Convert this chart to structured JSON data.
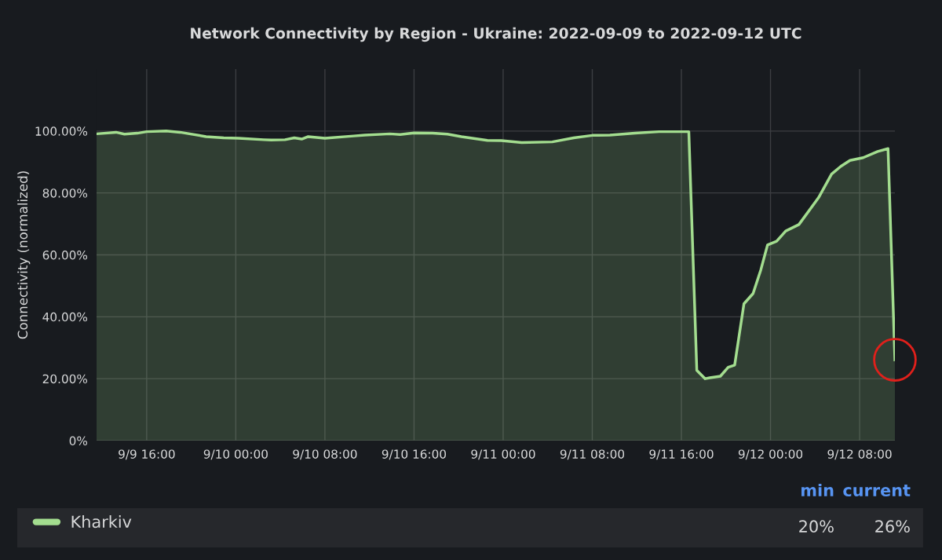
{
  "chart_data": {
    "type": "area",
    "title": "Network Connectivity by Region - Ukraine: 2022-09-09 to 2022-09-12 UTC",
    "ylabel": "Connectivity (normalized)",
    "x": [
      "2022-09-09T11:30",
      "2022-09-09T13:15",
      "2022-09-09T14:00",
      "2022-09-09T15:10",
      "2022-09-09T16:00",
      "2022-09-09T17:45",
      "2022-09-09T19:00",
      "2022-09-09T21:20",
      "2022-09-09T22:55",
      "2022-09-10T00:15",
      "2022-09-10T02:30",
      "2022-09-10T03:10",
      "2022-09-10T04:25",
      "2022-09-10T05:15",
      "2022-09-10T05:55",
      "2022-09-10T06:30",
      "2022-09-10T08:00",
      "2022-09-10T10:35",
      "2022-09-10T11:35",
      "2022-09-10T13:50",
      "2022-09-10T14:45",
      "2022-09-10T16:00",
      "2022-09-10T17:40",
      "2022-09-10T19:00",
      "2022-09-10T20:15",
      "2022-09-10T22:35",
      "2022-09-10T23:50",
      "2022-09-11T01:40",
      "2022-09-11T04:25",
      "2022-09-11T06:20",
      "2022-09-11T08:00",
      "2022-09-11T09:35",
      "2022-09-11T11:50",
      "2022-09-11T14:00",
      "2022-09-11T16:40",
      "2022-09-11T17:23",
      "2022-09-11T18:08",
      "2022-09-11T18:33",
      "2022-09-11T19:30",
      "2022-09-11T20:12",
      "2022-09-11T20:47",
      "2022-09-11T21:37",
      "2022-09-11T22:26",
      "2022-09-11T23:08",
      "2022-09-11T23:44",
      "2022-09-12T00:33",
      "2022-09-12T01:22",
      "2022-09-12T02:33",
      "2022-09-12T04:19",
      "2022-09-12T05:29",
      "2022-09-12T06:19",
      "2022-09-12T07:08",
      "2022-09-12T08:19",
      "2022-09-12T09:37",
      "2022-09-12T10:33",
      "2022-09-12T11:10"
    ],
    "series": [
      {
        "name": "Kharkiv",
        "color": "#a3dd8f",
        "values": [
          99.1,
          99.6,
          99.0,
          99.3,
          99.8,
          100.0,
          99.6,
          98.2,
          97.8,
          97.7,
          97.2,
          97.1,
          97.2,
          97.8,
          97.4,
          98.2,
          97.7,
          98.4,
          98.7,
          99.1,
          98.9,
          99.4,
          99.3,
          99.0,
          98.2,
          97.0,
          96.9,
          96.3,
          96.5,
          97.8,
          98.6,
          98.7,
          99.3,
          99.8,
          99.8,
          22.7,
          20.0,
          20.3,
          20.8,
          23.7,
          24.4,
          44.2,
          47.5,
          55.2,
          63.2,
          64.4,
          67.7,
          69.8,
          78.5,
          86.1,
          88.6,
          90.5,
          91.4,
          93.4,
          94.3,
          26.1
        ]
      }
    ],
    "xlim": [
      "2022-09-09T11:30",
      "2022-09-12T11:10"
    ],
    "xticks": [
      {
        "value": "2022-09-09T16:00",
        "label": "9/9 16:00"
      },
      {
        "value": "2022-09-10T00:00",
        "label": "9/10 00:00"
      },
      {
        "value": "2022-09-10T08:00",
        "label": "9/10 08:00"
      },
      {
        "value": "2022-09-10T16:00",
        "label": "9/10 16:00"
      },
      {
        "value": "2022-09-11T00:00",
        "label": "9/11 00:00"
      },
      {
        "value": "2022-09-11T08:00",
        "label": "9/11 08:00"
      },
      {
        "value": "2022-09-11T16:00",
        "label": "9/11 16:00"
      },
      {
        "value": "2022-09-12T00:00",
        "label": "9/12 00:00"
      },
      {
        "value": "2022-09-12T08:00",
        "label": "9/12 08:00"
      }
    ],
    "ylim": [
      0,
      120
    ],
    "yticks": [
      {
        "value": 0,
        "label": "0%"
      },
      {
        "value": 20,
        "label": "20.00%"
      },
      {
        "value": 40,
        "label": "40.00%"
      },
      {
        "value": 60,
        "label": "60.00%"
      },
      {
        "value": 80,
        "label": "80.00%"
      },
      {
        "value": 100,
        "label": "100.00%"
      }
    ],
    "grid": true,
    "legend": "bottom",
    "annotations": [
      "min",
      "current",
      "20%",
      "26%"
    ]
  }
}
